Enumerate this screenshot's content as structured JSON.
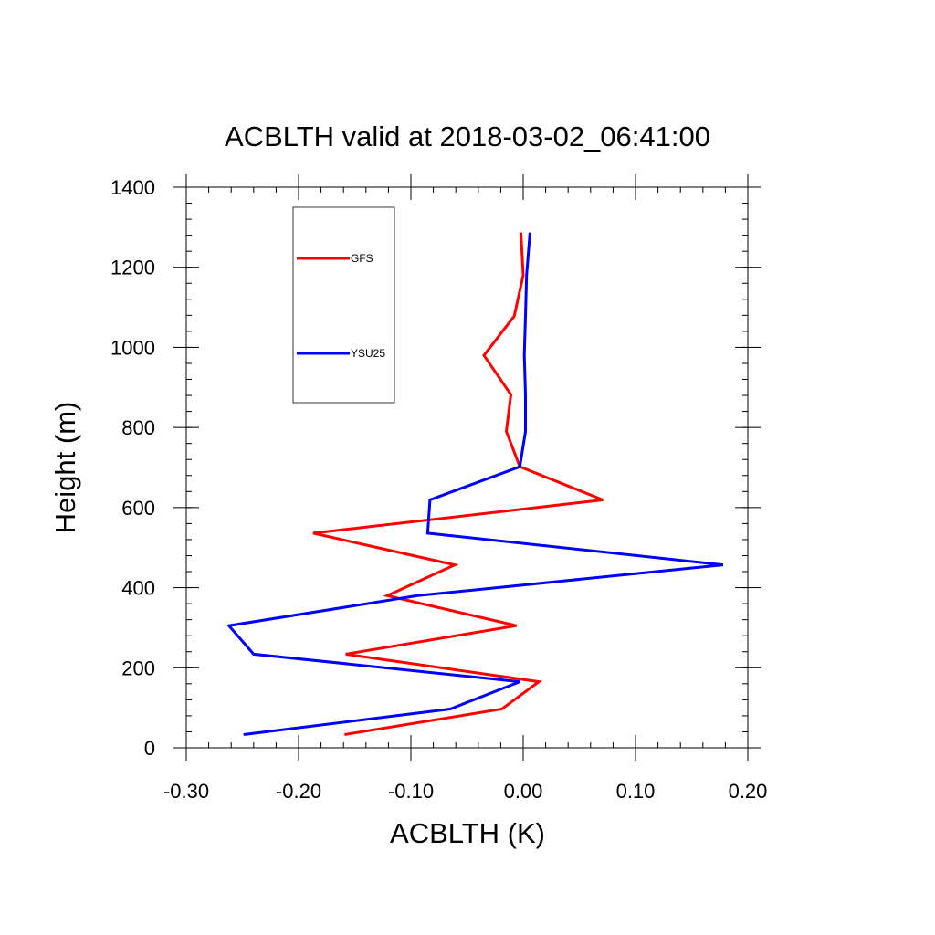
{
  "chart_data": {
    "type": "line",
    "title": "ACBLTH valid at 2018-03-02_06:41:00",
    "xlabel": "ACBLTH (K)",
    "ylabel": "Height (m)",
    "xlim": [
      -0.3,
      0.2
    ],
    "ylim": [
      0,
      1400
    ],
    "x_ticks": [
      -0.3,
      -0.2,
      -0.1,
      0.0,
      0.1,
      0.2
    ],
    "x_tick_labels": [
      "-0.30",
      "-0.20",
      "-0.10",
      "0.00",
      "0.10",
      "0.20"
    ],
    "y_ticks": [
      0,
      200,
      400,
      600,
      800,
      1000,
      1200,
      1400
    ],
    "y_tick_labels": [
      "0",
      "200",
      "400",
      "600",
      "800",
      "1000",
      "1200",
      "1400"
    ],
    "grid": false,
    "legend_position": "top-left",
    "series": [
      {
        "name": "GFS",
        "color": "#ff0000",
        "points": [
          [
            -0.159,
            33
          ],
          [
            -0.019,
            97
          ],
          [
            0.014,
            165
          ],
          [
            -0.158,
            234
          ],
          [
            -0.006,
            305
          ],
          [
            -0.121,
            380
          ],
          [
            -0.061,
            457
          ],
          [
            -0.187,
            536
          ],
          [
            0.071,
            619
          ],
          [
            -0.003,
            702
          ],
          [
            -0.015,
            790
          ],
          [
            -0.011,
            882
          ],
          [
            -0.035,
            980
          ],
          [
            -0.008,
            1078
          ],
          [
            0.0,
            1180
          ],
          [
            -0.002,
            1287
          ]
        ]
      },
      {
        "name": "YSU25",
        "color": "#0000ff",
        "points": [
          [
            -0.249,
            33
          ],
          [
            -0.065,
            97
          ],
          [
            -0.003,
            165
          ],
          [
            -0.24,
            234
          ],
          [
            -0.262,
            305
          ],
          [
            -0.094,
            380
          ],
          [
            0.178,
            457
          ],
          [
            -0.085,
            536
          ],
          [
            -0.083,
            619
          ],
          [
            -0.003,
            702
          ],
          [
            0.002,
            790
          ],
          [
            0.002,
            882
          ],
          [
            0.001,
            980
          ],
          [
            0.002,
            1078
          ],
          [
            0.003,
            1180
          ],
          [
            0.006,
            1287
          ]
        ]
      }
    ]
  }
}
